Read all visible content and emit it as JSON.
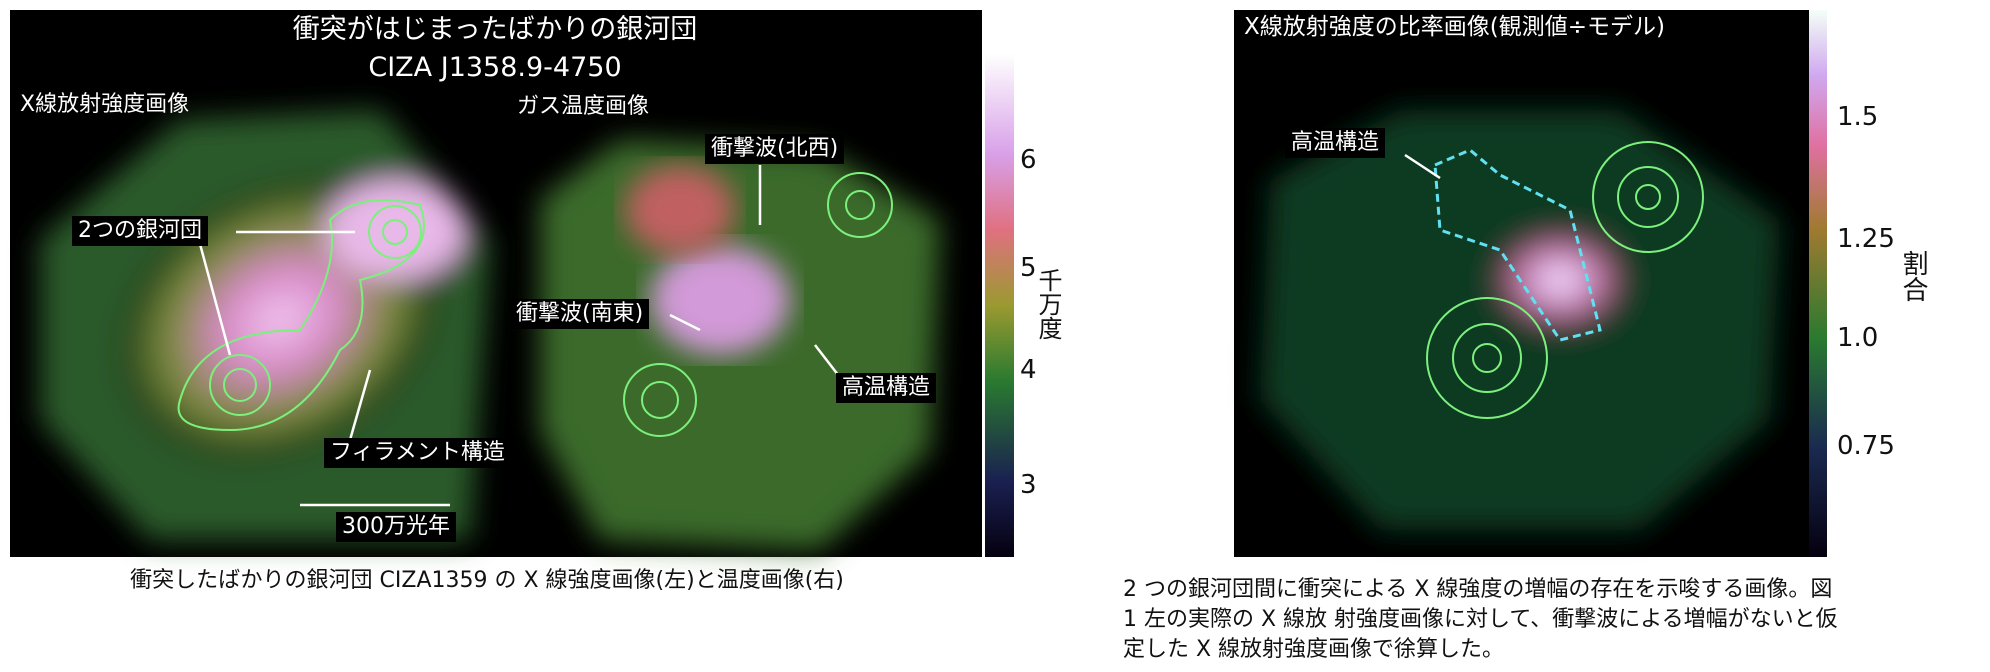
{
  "left_figure": {
    "title": "衝突がはじまったばかりの銀河団",
    "subtitle": "CIZA J1358.9-4750",
    "xray_label": "X線放射強度画像",
    "temp_label": "ガス温度画像",
    "annotations": [
      "2つの銀河団",
      "衝撃波(北西)",
      "衝撃波(南東)",
      "高温構造",
      "フィラメント構造",
      "300万光年"
    ],
    "colorbar": {
      "label": "千万度",
      "ticks": [
        "6",
        "5",
        "4",
        "3"
      ]
    },
    "caption": "衝突したばかりの銀河団 CIZA1359 の X 線強度画像(左)と温度画像(右)"
  },
  "right_figure": {
    "title": "X線放射強度の比率画像(観測値÷モデル)",
    "annotations": [
      "高温構造"
    ],
    "colorbar": {
      "label": "割合",
      "ticks": [
        "1.5",
        "1.25",
        "1.0",
        "0.75"
      ]
    },
    "caption": [
      "2 つの銀河団間に衝突による X 線強度の増幅の存在を示唆する画像。図",
      "1 左の実際の X 線放 射強度画像に対して、衝撃波による増幅がないと仮",
      "定した X 線放射強度画像で徐算した。"
    ]
  }
}
